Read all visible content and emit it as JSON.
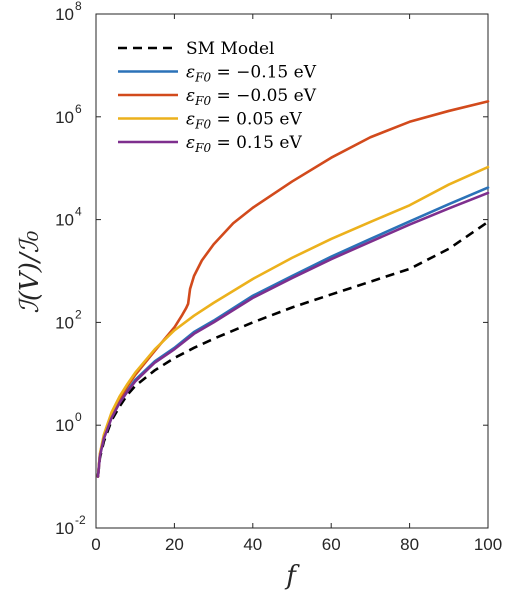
{
  "chart_data": {
    "type": "line",
    "xlabel": "f",
    "ylabel": "ℐ(V)/ℐ₀",
    "xlim": [
      0,
      100
    ],
    "ylim": [
      0.01,
      100000000
    ],
    "y_scale": "log",
    "grid": false,
    "legend_position": "top-left",
    "x_ticks": [
      0,
      20,
      40,
      60,
      80,
      100
    ],
    "y_ticks": [
      {
        "value": 0.01,
        "mantissa": "10",
        "exp": "-2"
      },
      {
        "value": 1,
        "mantissa": "10",
        "exp": "0"
      },
      {
        "value": 100,
        "mantissa": "10",
        "exp": "2"
      },
      {
        "value": 10000,
        "mantissa": "10",
        "exp": "4"
      },
      {
        "value": 1000000,
        "mantissa": "10",
        "exp": "6"
      },
      {
        "value": 100000000,
        "mantissa": "10",
        "exp": "8"
      }
    ],
    "series": [
      {
        "name": "SM Model",
        "color": "#000000",
        "dash": true,
        "x": [
          0.5,
          1,
          2,
          4,
          6,
          8,
          10,
          15,
          20,
          25,
          30,
          40,
          50,
          60,
          70,
          80,
          90,
          100
        ],
        "y": [
          0.1,
          0.23,
          0.48,
          1.25,
          2.3,
          3.9,
          5.8,
          11.7,
          20.3,
          32,
          48,
          100,
          195,
          350,
          620,
          1100,
          2700,
          9000
        ]
      },
      {
        "name": "εF0 = −0.15 eV",
        "legend": {
          "label": "F0",
          "rhs": " = −0.15 eV"
        },
        "color": "#2b72b8",
        "dash": false,
        "x": [
          0.5,
          1,
          2,
          4,
          6,
          8,
          10,
          15,
          20,
          25,
          30,
          40,
          50,
          60,
          70,
          80,
          90,
          100
        ],
        "y": [
          0.1,
          0.26,
          0.56,
          1.45,
          2.85,
          4.7,
          7.6,
          17.5,
          32,
          65,
          108,
          330,
          800,
          1900,
          4200,
          9200,
          20000,
          42000
        ]
      },
      {
        "name": "εF0 = −0.05 eV",
        "legend": {
          "label": "F0",
          "rhs": " = −0.05 eV"
        },
        "color": "#d24a1c",
        "dash": false,
        "x": [
          0.5,
          1,
          2,
          4,
          6,
          8,
          10,
          15,
          20,
          22,
          23,
          23.5,
          24,
          25,
          27,
          30,
          35,
          40,
          50,
          60,
          70,
          80,
          90,
          100
        ],
        "y": [
          0.1,
          0.27,
          0.6,
          1.6,
          3.2,
          5.7,
          9.5,
          28,
          80,
          140,
          190,
          230,
          450,
          800,
          1600,
          3300,
          8500,
          17000,
          55000,
          160000,
          400000,
          800000,
          1300000,
          2000000
        ]
      },
      {
        "name": "εF0 = 0.05 eV",
        "legend": {
          "label": "F0",
          "rhs": " = 0.05 eV"
        },
        "color": "#ecb11c",
        "dash": false,
        "x": [
          0.5,
          1,
          2,
          4,
          6,
          8,
          10,
          15,
          20,
          25,
          30,
          40,
          50,
          60,
          70,
          80,
          90,
          100
        ],
        "y": [
          0.1,
          0.28,
          0.65,
          1.8,
          3.6,
          6.3,
          10.5,
          30,
          70,
          135,
          240,
          700,
          1800,
          4200,
          9000,
          19000,
          48000,
          105000
        ]
      },
      {
        "name": "εF0 = 0.15 eV",
        "legend": {
          "label": "F0",
          "rhs": " = 0.15 eV"
        },
        "color": "#7e2f8e",
        "dash": false,
        "x": [
          0.5,
          1,
          2,
          4,
          6,
          8,
          10,
          15,
          20,
          25,
          30,
          40,
          50,
          60,
          70,
          80,
          90,
          100
        ],
        "y": [
          0.1,
          0.25,
          0.55,
          1.4,
          2.7,
          4.5,
          7.1,
          16.5,
          30,
          60,
          100,
          300,
          730,
          1700,
          3700,
          8000,
          16500,
          33000
        ]
      }
    ]
  }
}
